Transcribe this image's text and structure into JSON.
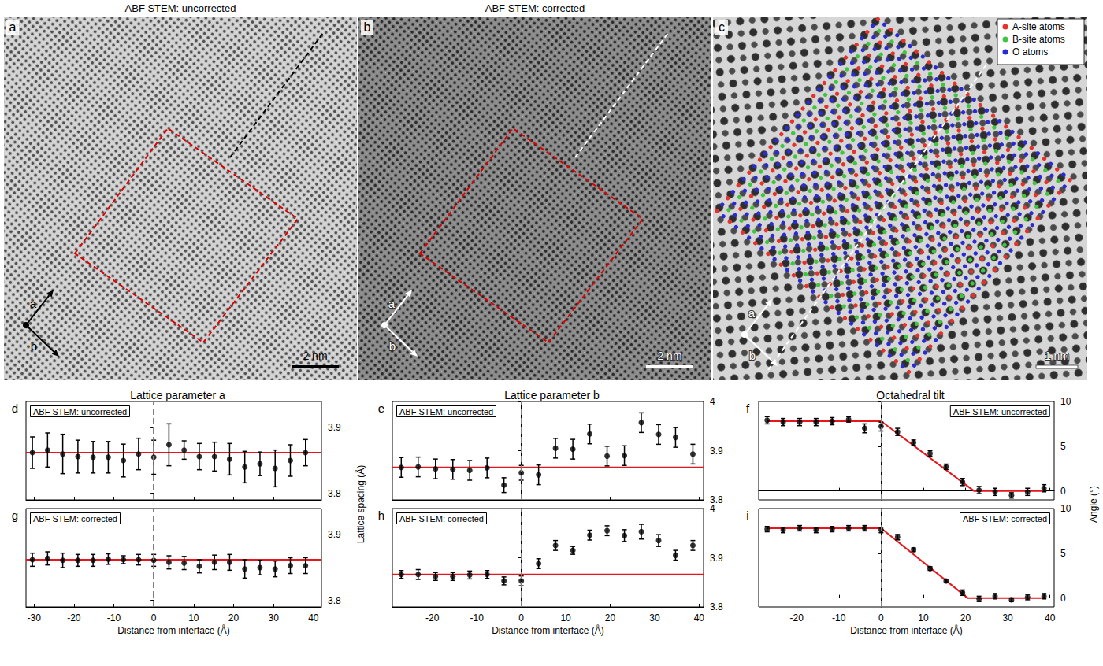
{
  "figure": {
    "images": [
      {
        "letter": "a",
        "title": "ABF STEM: uncorrected",
        "scale_bar": "2 nm",
        "axes": [
          "a",
          "b"
        ]
      },
      {
        "letter": "b",
        "title": "ABF STEM: corrected",
        "scale_bar": "2 nm",
        "axes": [
          "a",
          "b"
        ]
      },
      {
        "letter": "c",
        "scale_bar": "1 nm",
        "axes": [
          "a",
          "b"
        ],
        "legend": [
          {
            "name": "A-site atoms",
            "color": "#e8312c"
          },
          {
            "name": "B-site atoms",
            "color": "#3ec63e"
          },
          {
            "name": "O atoms",
            "color": "#2b2bd6"
          }
        ]
      }
    ]
  },
  "chart_data": [
    {
      "type": "scatter",
      "title": "Lattice parameter a",
      "ylabel": "Lattice spacing (Å)",
      "xlabel": "Distance from interface (Å)",
      "panels": [
        {
          "letter": "d",
          "label": "ABF STEM: uncorrected",
          "tick_labels": "y",
          "xlim": [
            -32,
            42
          ],
          "xticks": [
            -30,
            -20,
            -10,
            0,
            10,
            20,
            30,
            40
          ],
          "ylim": [
            3.79,
            3.94
          ],
          "yticks": [
            3.8,
            3.9
          ],
          "interface": {
            "x": 0,
            "color": "#808080",
            "line_style": "dashed"
          },
          "series": [
            {
              "type": "scatter",
              "color": "#000000",
              "marker": "circle",
              "x": [
                -30.4,
                -26.6,
                -22.8,
                -19.0,
                -15.2,
                -11.4,
                -7.6,
                -3.8,
                0,
                3.8,
                7.6,
                11.4,
                15.2,
                19.0,
                22.8,
                26.6,
                30.4,
                34.2,
                38.0
              ],
              "values": [
                3.862,
                3.866,
                3.86,
                3.856,
                3.855,
                3.855,
                3.85,
                3.86,
                3.855,
                3.874,
                3.866,
                3.856,
                3.856,
                3.852,
                3.84,
                3.845,
                3.838,
                3.85,
                3.862
              ],
              "errors": [
                0.024,
                0.026,
                0.03,
                0.025,
                0.024,
                0.024,
                0.025,
                0.024,
                0.026,
                0.032,
                0.014,
                0.02,
                0.022,
                0.024,
                0.024,
                0.018,
                0.028,
                0.024,
                0.02
              ]
            },
            {
              "type": "line",
              "color": "#e8151b",
              "line_style": "solid",
              "x": [
                -32,
                42
              ],
              "values": [
                3.862,
                3.862
              ]
            }
          ]
        },
        {
          "letter": "g",
          "label": "ABF STEM: corrected",
          "xlim": [
            -32,
            42
          ],
          "xticks": [
            -30,
            -20,
            -10,
            0,
            10,
            20,
            30,
            40
          ],
          "ylim": [
            3.79,
            3.94
          ],
          "yticks": [
            3.8,
            3.9
          ],
          "interface": {
            "x": 0,
            "color": "#808080",
            "line_style": "dashed"
          },
          "series": [
            {
              "type": "scatter",
              "color": "#000000",
              "marker": "circle",
              "x": [
                -30.4,
                -26.6,
                -22.8,
                -19.0,
                -15.2,
                -11.4,
                -7.6,
                -3.8,
                0,
                3.8,
                7.6,
                11.4,
                15.2,
                19.0,
                22.8,
                26.6,
                30.4,
                34.2,
                38.0
              ],
              "values": [
                3.862,
                3.864,
                3.861,
                3.861,
                3.861,
                3.863,
                3.862,
                3.862,
                3.861,
                3.858,
                3.857,
                3.852,
                3.858,
                3.858,
                3.848,
                3.85,
                3.848,
                3.853,
                3.853
              ],
              "errors": [
                0.01,
                0.01,
                0.011,
                0.009,
                0.009,
                0.008,
                0.006,
                0.008,
                0.009,
                0.01,
                0.01,
                0.01,
                0.011,
                0.012,
                0.014,
                0.011,
                0.012,
                0.012,
                0.012
              ]
            },
            {
              "type": "line",
              "color": "#e8151b",
              "line_style": "solid",
              "x": [
                -32,
                42
              ],
              "values": [
                3.862,
                3.862
              ]
            }
          ]
        }
      ]
    },
    {
      "type": "scatter",
      "title": "Lattice parameter b",
      "xlabel": "Distance from interface (Å)",
      "panels": [
        {
          "letter": "e",
          "label": "ABF STEM: uncorrected",
          "tick_labels": "y",
          "xlim": [
            -29,
            41
          ],
          "xticks": [
            -20,
            -10,
            0,
            10,
            20,
            30,
            40
          ],
          "ylim": [
            3.8,
            4.0
          ],
          "yticks": [
            3.8,
            3.9,
            4
          ],
          "interface": {
            "x": 0,
            "color": "#808080",
            "line_style": "dashed"
          },
          "series": [
            {
              "type": "scatter",
              "color": "#000000",
              "marker": "circle",
              "x": [
                -27.0,
                -23.2,
                -19.3,
                -15.4,
                -11.6,
                -7.7,
                -3.9,
                0,
                3.9,
                7.7,
                11.6,
                15.4,
                19.3,
                23.2,
                27.0,
                30.9,
                34.7,
                38.6
              ],
              "values": [
                3.866,
                3.867,
                3.863,
                3.862,
                3.86,
                3.865,
                3.83,
                3.855,
                3.851,
                3.905,
                3.903,
                3.934,
                3.889,
                3.89,
                3.957,
                3.933,
                3.927,
                3.893
              ],
              "errors": [
                0.02,
                0.02,
                0.02,
                0.02,
                0.02,
                0.02,
                0.015,
                0.015,
                0.02,
                0.02,
                0.02,
                0.02,
                0.02,
                0.02,
                0.02,
                0.02,
                0.02,
                0.02
              ]
            },
            {
              "type": "line",
              "color": "#e8151b",
              "line_style": "solid",
              "x": [
                -29,
                41
              ],
              "values": [
                3.866,
                3.866
              ]
            }
          ]
        },
        {
          "letter": "h",
          "label": "ABF STEM: corrected",
          "xlim": [
            -29,
            41
          ],
          "xticks": [
            -20,
            -10,
            0,
            10,
            20,
            30,
            40
          ],
          "ylim": [
            3.8,
            4.0
          ],
          "yticks": [
            3.8,
            3.9,
            4
          ],
          "interface": {
            "x": 0,
            "color": "#808080",
            "line_style": "dashed"
          },
          "series": [
            {
              "type": "scatter",
              "color": "#000000",
              "marker": "circle",
              "x": [
                -27.0,
                -23.2,
                -19.3,
                -15.4,
                -11.6,
                -7.7,
                -3.9,
                0,
                3.9,
                7.7,
                11.6,
                15.4,
                19.3,
                23.2,
                27.0,
                30.9,
                34.7,
                38.6
              ],
              "values": [
                3.866,
                3.866,
                3.862,
                3.862,
                3.865,
                3.866,
                3.853,
                3.853,
                3.888,
                3.925,
                3.915,
                3.946,
                3.955,
                3.945,
                3.953,
                3.935,
                3.905,
                3.925
              ],
              "errors": [
                0.008,
                0.01,
                0.008,
                0.008,
                0.008,
                0.008,
                0.008,
                0.01,
                0.01,
                0.01,
                0.008,
                0.01,
                0.01,
                0.012,
                0.015,
                0.012,
                0.01,
                0.01
              ]
            },
            {
              "type": "line",
              "color": "#e8151b",
              "line_style": "solid",
              "x": [
                -29,
                41
              ],
              "values": [
                3.866,
                3.866
              ]
            }
          ]
        }
      ]
    },
    {
      "type": "scatter",
      "title": "Octahedral tilt",
      "ylabel": "Angle (°)",
      "xlabel": "Distance from interface (Å)",
      "panels": [
        {
          "letter": "f",
          "label": "ABF STEM: uncorrected",
          "tick_labels": "y",
          "xlim": [
            -29,
            41
          ],
          "xticks": [
            -20,
            -10,
            0,
            10,
            20,
            30,
            40
          ],
          "ylim": [
            -1,
            10
          ],
          "yticks": [
            0,
            5,
            10
          ],
          "interface": {
            "x": 0,
            "color": "#808080",
            "line_style": "dashed"
          },
          "series": [
            {
              "type": "scatter",
              "color": "#000000",
              "marker": "circle",
              "x": [
                -27.0,
                -23.2,
                -19.3,
                -15.4,
                -11.6,
                -7.7,
                -3.9,
                0,
                3.9,
                7.7,
                11.6,
                15.4,
                19.3,
                23.2,
                27.0,
                30.9,
                34.7,
                38.6
              ],
              "values": [
                7.9,
                7.7,
                7.7,
                7.7,
                7.8,
                8.0,
                7.0,
                7.2,
                6.6,
                5.4,
                4.2,
                2.7,
                1.0,
                0.1,
                -0.1,
                -0.5,
                -0.1,
                0.3
              ],
              "errors": [
                0.4,
                0.4,
                0.4,
                0.4,
                0.4,
                0.3,
                0.5,
                0.5,
                0.4,
                0.3,
                0.3,
                0.3,
                0.4,
                0.4,
                0.4,
                0.3,
                0.4,
                0.4
              ]
            },
            {
              "type": "line",
              "color": "#e8151b",
              "line_style": "solid",
              "x": [
                -27,
                0,
                22,
                39
              ],
              "values": [
                7.8,
                7.8,
                0,
                0
              ]
            }
          ]
        },
        {
          "letter": "i",
          "label": "ABF STEM: corrected",
          "xlim": [
            -29,
            41
          ],
          "xticks": [
            -20,
            -10,
            0,
            10,
            20,
            30,
            40
          ],
          "ylim": [
            -1,
            10
          ],
          "yticks": [
            0,
            5,
            10
          ],
          "interface": {
            "x": 0,
            "color": "#808080",
            "line_style": "dashed"
          },
          "series": [
            {
              "type": "scatter",
              "color": "#000000",
              "marker": "circle",
              "x": [
                -27.0,
                -23.2,
                -19.3,
                -15.4,
                -11.6,
                -7.7,
                -3.9,
                0,
                3.9,
                7.7,
                11.6,
                15.4,
                19.3,
                23.2,
                27.0,
                30.9,
                34.7,
                38.6
              ],
              "values": [
                7.7,
                7.6,
                7.8,
                7.6,
                7.7,
                7.8,
                7.8,
                7.6,
                6.8,
                5.4,
                3.3,
                1.9,
                0.6,
                -0.1,
                0.2,
                -0.2,
                0.1,
                0.2
              ],
              "errors": [
                0.3,
                0.3,
                0.3,
                0.3,
                0.3,
                0.3,
                0.3,
                0.3,
                0.3,
                0.2,
                0.2,
                0.2,
                0.3,
                0.3,
                0.3,
                0.2,
                0.3,
                0.3
              ]
            },
            {
              "type": "line",
              "color": "#e8151b",
              "line_style": "solid",
              "x": [
                -27,
                0,
                20.5,
                39
              ],
              "values": [
                7.8,
                7.8,
                0,
                0
              ]
            }
          ]
        }
      ]
    }
  ]
}
